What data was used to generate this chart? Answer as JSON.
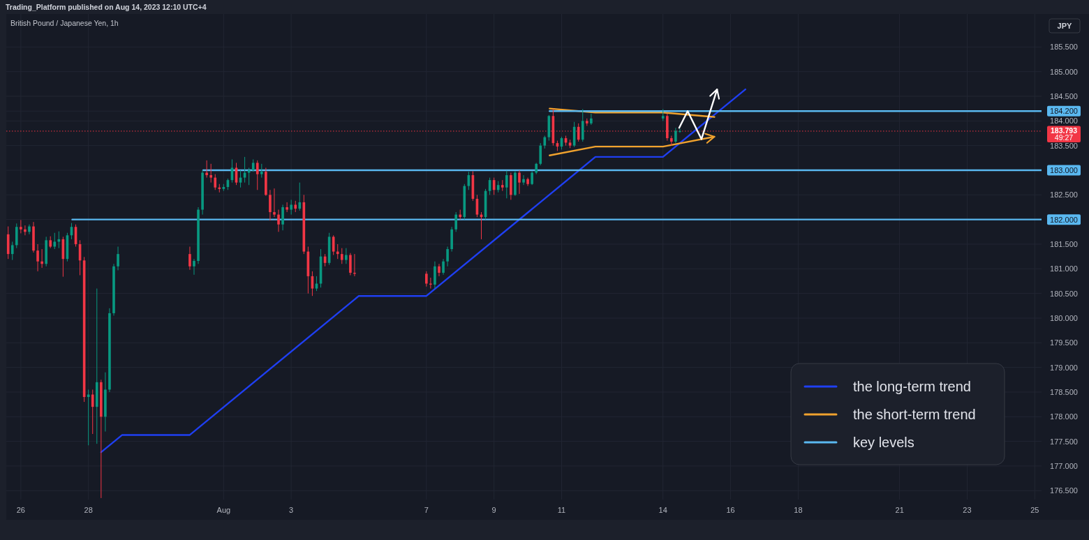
{
  "chart_data": {
    "type": "candlestick",
    "title": "British Pound / Japanese Yen, 1h",
    "ylabel": "JPY",
    "annotations": [
      "Trading_Platform published on Aug 14, 2023 12:10 UTC+4",
      "49:27"
    ],
    "x": [
      "2023-07-25T15:00",
      "2023-07-25T18:00",
      "2023-07-25T21:00",
      "2023-07-26T00:00",
      "2023-07-26T03:00",
      "2023-07-26T06:00",
      "2023-07-26T09:00",
      "2023-07-26T12:00",
      "2023-07-26T15:00",
      "2023-07-26T18:00",
      "2023-07-26T21:00",
      "2023-07-27T00:00",
      "2023-07-27T03:00",
      "2023-07-27T06:00",
      "2023-07-27T09:00",
      "2023-07-27T12:00",
      "2023-07-27T15:00",
      "2023-07-27T18:00",
      "2023-07-27T21:00",
      "2023-07-28T00:00",
      "2023-07-28T03:00",
      "2023-07-28T06:00",
      "2023-07-28T09:00",
      "2023-07-28T12:00",
      "2023-07-28T15:00",
      "2023-07-28T18:00",
      "2023-07-28T21:00",
      "2023-07-31T00:00",
      "2023-07-31T03:00",
      "2023-07-31T06:00",
      "2023-07-31T09:00",
      "2023-07-31T12:00",
      "2023-07-31T15:00",
      "2023-07-31T18:00",
      "2023-07-31T21:00",
      "2023-08-01T00:00",
      "2023-08-01T03:00",
      "2023-08-01T06:00",
      "2023-08-01T09:00",
      "2023-08-01T12:00",
      "2023-08-01T15:00",
      "2023-08-01T18:00",
      "2023-08-01T21:00",
      "2023-08-02T00:00",
      "2023-08-02T03:00",
      "2023-08-02T06:00",
      "2023-08-02T09:00",
      "2023-08-02T12:00",
      "2023-08-02T15:00",
      "2023-08-02T18:00",
      "2023-08-02T21:00",
      "2023-08-03T00:00",
      "2023-08-03T03:00",
      "2023-08-03T06:00",
      "2023-08-03T09:00",
      "2023-08-03T12:00",
      "2023-08-03T15:00",
      "2023-08-03T18:00",
      "2023-08-03T21:00",
      "2023-08-04T00:00",
      "2023-08-04T03:00",
      "2023-08-04T06:00",
      "2023-08-04T09:00",
      "2023-08-04T12:00",
      "2023-08-04T15:00",
      "2023-08-04T18:00",
      "2023-08-04T21:00",
      "2023-08-07T00:00",
      "2023-08-07T03:00",
      "2023-08-07T06:00",
      "2023-08-07T09:00",
      "2023-08-07T12:00",
      "2023-08-07T15:00",
      "2023-08-07T18:00",
      "2023-08-07T21:00",
      "2023-08-08T00:00",
      "2023-08-08T03:00",
      "2023-08-08T06:00",
      "2023-08-08T09:00",
      "2023-08-08T12:00",
      "2023-08-08T15:00",
      "2023-08-08T18:00",
      "2023-08-08T21:00",
      "2023-08-09T00:00",
      "2023-08-09T03:00",
      "2023-08-09T06:00",
      "2023-08-09T09:00",
      "2023-08-09T12:00",
      "2023-08-09T15:00",
      "2023-08-09T18:00",
      "2023-08-09T21:00",
      "2023-08-10T00:00",
      "2023-08-10T03:00",
      "2023-08-10T06:00",
      "2023-08-10T09:00",
      "2023-08-10T12:00",
      "2023-08-10T15:00",
      "2023-08-10T18:00",
      "2023-08-10T21:00",
      "2023-08-11T00:00",
      "2023-08-11T03:00",
      "2023-08-11T06:00",
      "2023-08-11T09:00",
      "2023-08-11T12:00",
      "2023-08-11T15:00",
      "2023-08-11T18:00",
      "2023-08-11T21:00",
      "2023-08-14T00:00",
      "2023-08-14T03:00",
      "2023-08-14T06:00",
      "2023-08-14T09:00",
      "2023-08-14T12:00"
    ],
    "ohlc": [
      [
        181.7,
        181.86,
        181.2,
        181.3
      ],
      [
        181.3,
        181.55,
        181.18,
        181.48
      ],
      [
        181.48,
        181.92,
        181.42,
        181.85
      ],
      [
        181.85,
        181.99,
        181.72,
        181.8
      ],
      [
        181.8,
        181.88,
        181.68,
        181.75
      ],
      [
        181.75,
        181.9,
        181.7,
        181.86
      ],
      [
        181.86,
        181.95,
        181.33,
        181.37
      ],
      [
        181.37,
        181.5,
        180.95,
        181.15
      ],
      [
        181.15,
        181.4,
        181.02,
        181.1
      ],
      [
        181.1,
        181.65,
        181.05,
        181.58
      ],
      [
        181.58,
        181.66,
        181.42,
        181.45
      ],
      [
        181.45,
        181.73,
        181.4,
        181.55
      ],
      [
        181.55,
        181.76,
        181.42,
        181.6
      ],
      [
        181.6,
        181.65,
        180.84,
        181.2
      ],
      [
        181.2,
        181.73,
        181.15,
        181.68
      ],
      [
        181.68,
        181.93,
        181.6,
        181.85
      ],
      [
        181.85,
        181.9,
        181.45,
        181.5
      ],
      [
        181.5,
        181.58,
        180.87,
        181.17
      ],
      [
        181.17,
        181.24,
        178.3,
        178.4
      ],
      [
        178.4,
        178.55,
        177.42,
        178.45
      ],
      [
        178.45,
        178.55,
        177.65,
        178.2
      ],
      [
        178.2,
        180.6,
        177.45,
        178.7
      ],
      [
        178.7,
        178.75,
        176.35,
        178.0
      ],
      [
        178.0,
        178.9,
        177.7,
        178.55
      ],
      [
        178.55,
        180.2,
        178.5,
        180.1
      ],
      [
        180.1,
        181.1,
        180.05,
        181.05
      ],
      [
        181.05,
        181.45,
        180.97,
        181.3
      ],
      [
        181.3,
        181.45,
        180.98,
        181.05
      ],
      [
        181.05,
        181.2,
        180.88,
        181.16
      ],
      [
        181.16,
        182.25,
        181.1,
        182.2
      ],
      [
        182.2,
        183.0,
        182.1,
        182.95
      ],
      [
        182.95,
        183.2,
        182.85,
        182.9
      ],
      [
        182.9,
        183.13,
        182.75,
        182.85
      ],
      [
        182.85,
        182.92,
        182.6,
        182.65
      ],
      [
        182.65,
        182.72,
        182.55,
        182.62
      ],
      [
        182.62,
        182.72,
        182.58,
        182.66
      ],
      [
        182.66,
        182.83,
        182.6,
        182.8
      ],
      [
        182.8,
        183.22,
        182.75,
        183.05
      ],
      [
        183.05,
        183.15,
        182.7,
        182.75
      ],
      [
        182.75,
        183.0,
        182.65,
        182.85
      ],
      [
        182.85,
        183.27,
        182.75,
        182.95
      ],
      [
        182.95,
        183.05,
        182.7,
        183.0
      ],
      [
        183.0,
        183.22,
        182.97,
        183.15
      ],
      [
        183.15,
        183.2,
        182.6,
        182.92
      ],
      [
        182.92,
        183.13,
        182.85,
        182.97
      ],
      [
        182.97,
        183.05,
        182.48,
        182.5
      ],
      [
        182.5,
        182.6,
        181.98,
        182.15
      ],
      [
        182.15,
        182.63,
        182.05,
        182.1
      ],
      [
        182.1,
        182.2,
        181.75,
        181.9
      ],
      [
        181.9,
        182.3,
        181.78,
        182.25
      ],
      [
        182.25,
        182.35,
        182.15,
        182.2
      ],
      [
        182.2,
        182.4,
        182.1,
        182.3
      ],
      [
        182.3,
        182.38,
        182.15,
        182.22
      ],
      [
        182.22,
        182.75,
        182.18,
        182.35
      ],
      [
        182.35,
        182.5,
        181.3,
        181.35
      ],
      [
        181.35,
        181.45,
        180.5,
        180.85
      ],
      [
        180.85,
        180.95,
        180.45,
        180.6
      ],
      [
        180.6,
        180.85,
        180.55,
        180.7
      ],
      [
        180.7,
        181.4,
        180.62,
        181.25
      ],
      [
        181.25,
        181.3,
        181.05,
        181.12
      ],
      [
        181.12,
        181.73,
        181.08,
        181.65
      ],
      [
        181.65,
        181.68,
        181.28,
        181.35
      ],
      [
        181.35,
        181.5,
        181.2,
        181.3
      ],
      [
        181.3,
        181.42,
        181.1,
        181.18
      ],
      [
        181.18,
        181.42,
        181.1,
        181.28
      ],
      [
        181.28,
        181.32,
        180.87,
        180.92
      ],
      [
        180.92,
        181.3,
        180.85,
        180.9
      ],
      [
        180.9,
        180.95,
        180.64,
        180.7
      ],
      [
        180.7,
        180.82,
        180.6,
        180.68
      ],
      [
        180.68,
        181.15,
        180.6,
        181.05
      ],
      [
        181.05,
        181.1,
        180.85,
        180.92
      ],
      [
        180.92,
        181.2,
        180.88,
        181.15
      ],
      [
        181.15,
        181.45,
        181.05,
        181.4
      ],
      [
        181.4,
        181.85,
        181.35,
        181.8
      ],
      [
        181.8,
        182.15,
        181.75,
        182.1
      ],
      [
        182.1,
        182.2,
        182.0,
        182.05
      ],
      [
        182.05,
        182.72,
        182.0,
        182.68
      ],
      [
        182.68,
        182.97,
        182.6,
        182.9
      ],
      [
        182.9,
        182.98,
        182.38,
        182.42
      ],
      [
        182.42,
        182.5,
        182.05,
        182.1
      ],
      [
        182.1,
        182.15,
        181.6,
        182.05
      ],
      [
        182.05,
        182.62,
        182.0,
        182.58
      ],
      [
        182.58,
        182.85,
        182.5,
        182.8
      ],
      [
        182.8,
        182.85,
        182.5,
        182.6
      ],
      [
        182.6,
        182.78,
        182.55,
        182.7
      ],
      [
        182.7,
        182.8,
        182.58,
        182.65
      ],
      [
        182.65,
        182.99,
        182.43,
        182.9
      ],
      [
        182.9,
        182.95,
        182.4,
        182.5
      ],
      [
        182.5,
        182.98,
        182.48,
        182.95
      ],
      [
        182.95,
        183.0,
        182.52,
        182.75
      ],
      [
        182.75,
        182.9,
        182.7,
        182.82
      ],
      [
        182.82,
        182.85,
        182.68,
        182.72
      ],
      [
        182.72,
        182.98,
        182.7,
        182.95
      ],
      [
        182.95,
        183.15,
        182.92,
        183.13
      ],
      [
        183.13,
        183.55,
        183.1,
        183.5
      ],
      [
        183.5,
        183.7,
        183.44,
        183.67
      ],
      [
        183.67,
        184.12,
        183.6,
        184.1
      ],
      [
        184.1,
        184.24,
        183.5,
        183.55
      ],
      [
        183.55,
        183.6,
        183.39,
        183.48
      ],
      [
        183.48,
        183.68,
        183.42,
        183.65
      ],
      [
        183.65,
        183.7,
        183.5,
        183.56
      ],
      [
        183.56,
        183.62,
        183.45,
        183.5
      ],
      [
        183.5,
        183.98,
        183.47,
        183.88
      ],
      [
        183.88,
        183.95,
        183.58,
        183.62
      ],
      [
        183.62,
        184.24,
        183.58,
        184.0
      ],
      [
        184.0,
        184.05,
        183.9,
        183.95
      ],
      [
        183.95,
        184.15,
        183.92,
        184.05
      ],
      [
        184.05,
        184.24,
        184.0,
        184.1
      ],
      [
        184.1,
        184.15,
        183.6,
        183.65
      ],
      [
        183.65,
        183.7,
        183.5,
        183.58
      ],
      [
        183.58,
        183.86,
        183.55,
        183.8
      ],
      [
        183.78,
        183.84,
        183.76,
        183.793
      ]
    ],
    "colors": [
      "#f23645",
      "#089981",
      "#089981",
      "#f23645",
      "#f23645",
      "#089981",
      "#f23645",
      "#f23645",
      "#f23645",
      "#089981",
      "#f23645",
      "#089981",
      "#089981",
      "#f23645",
      "#089981",
      "#089981",
      "#f23645",
      "#f23645",
      "#f23645",
      "#089981",
      "#f23645",
      "#089981",
      "#f23645",
      "#089981",
      "#089981",
      "#089981",
      "#089981",
      "#f23645",
      "#089981",
      "#089981",
      "#089981",
      "#f23645",
      "#f23645",
      "#f23645",
      "#f23645",
      "#089981",
      "#089981",
      "#089981",
      "#f23645",
      "#089981",
      "#089981",
      "#089981",
      "#089981",
      "#f23645",
      "#089981",
      "#f23645",
      "#f23645",
      "#f23645",
      "#f23645",
      "#089981",
      "#f23645",
      "#089981",
      "#f23645",
      "#089981",
      "#f23645",
      "#f23645",
      "#f23645",
      "#089981",
      "#089981",
      "#f23645",
      "#089981",
      "#f23645",
      "#f23645",
      "#f23645",
      "#089981",
      "#f23645",
      "#f23645",
      "#f23645",
      "#f23645",
      "#089981",
      "#f23645",
      "#089981",
      "#089981",
      "#089981",
      "#089981",
      "#f23645",
      "#089981",
      "#089981",
      "#f23645",
      "#f23645",
      "#f23645",
      "#089981",
      "#089981",
      "#f23645",
      "#089981",
      "#f23645",
      "#089981",
      "#f23645",
      "#089981",
      "#f23645",
      "#089981",
      "#f23645",
      "#089981",
      "#089981",
      "#089981",
      "#089981",
      "#089981",
      "#f23645",
      "#f23645",
      "#089981",
      "#f23645",
      "#f23645",
      "#089981",
      "#f23645",
      "#089981",
      "#f23645",
      "#089981",
      "#089981",
      "#f23645",
      "#f23645",
      "#089981",
      "#089981"
    ],
    "series": [
      {
        "name": "the long-term trend",
        "type": "line",
        "color": "#1f3ff2",
        "x": [
          "2023-07-28T09:00",
          "2023-07-29T00:00",
          "2023-07-31T00:00",
          "2023-08-05T00:00",
          "2023-08-07T00:00",
          "2023-08-12T00:00",
          "2023-08-14T00:00",
          "2023-08-16T10:30"
        ],
        "values": [
          177.28,
          177.63,
          177.63,
          180.45,
          180.45,
          183.27,
          183.27,
          184.64
        ]
      },
      {
        "name": "the short-term trend",
        "type": "line",
        "color": "#f0a22e",
        "x": [
          "2023-08-10T15:30",
          "2023-08-12T00:00",
          "2023-08-14T00:00",
          "2023-08-15T12:30"
        ],
        "values": [
          184.25,
          184.17,
          184.17,
          184.08
        ]
      },
      {
        "type": "line",
        "color": "#f0a22e",
        "x": [
          "2023-08-10T15:30",
          "2023-08-12T00:00",
          "2023-08-14T00:00",
          "2023-08-15T12:30"
        ],
        "values": [
          183.3,
          183.48,
          183.48,
          183.68
        ]
      },
      {
        "name": "key levels",
        "type": "line",
        "color": "#5ab8f0",
        "x": [
          "2023-07-27T12:30",
          "2023-08-25T04:48"
        ],
        "values": [
          182,
          182
        ]
      },
      {
        "type": "line",
        "color": "#5ab8f0",
        "x": [
          "2023-07-31T09:30",
          "2023-08-25T04:48"
        ],
        "values": [
          183,
          183
        ]
      },
      {
        "type": "line",
        "color": "#5ab8f0",
        "x": [
          "2023-08-10T15:30",
          "2023-08-25T04:48"
        ],
        "values": [
          184.2,
          184.2
        ]
      },
      {
        "type": "line",
        "color": "#ffffff",
        "x": [
          "2023-08-14T11:30",
          "2023-08-14T17:30",
          "2023-08-15T03:20",
          "2023-08-15T14:24"
        ],
        "values": [
          183.86,
          184.2,
          183.63,
          184.64
        ]
      }
    ],
    "ref_lines": [
      {
        "axis": "y",
        "value": 183.793,
        "label": "183.793",
        "color": "#f23645",
        "line_style": "dotted"
      }
    ],
    "xlim": [
      "2023-07-25T13:40",
      "2023-08-25T04:48"
    ],
    "xticks": [
      {
        "value": "2023-07-26",
        "label": "26"
      },
      {
        "value": "2023-07-28",
        "label": "28"
      },
      {
        "value": "2023-08-01",
        "label": "Aug"
      },
      {
        "value": "2023-08-03",
        "label": "3"
      },
      {
        "value": "2023-08-07",
        "label": "7"
      },
      {
        "value": "2023-08-09",
        "label": "9"
      },
      {
        "value": "2023-08-11",
        "label": "11"
      },
      {
        "value": "2023-08-14",
        "label": "14"
      },
      {
        "value": "2023-08-16",
        "label": "16"
      },
      {
        "value": "2023-08-18",
        "label": "18"
      },
      {
        "value": "2023-08-21",
        "label": "21"
      },
      {
        "value": "2023-08-23",
        "label": "23"
      },
      {
        "value": "2023-08-25",
        "label": "25"
      }
    ],
    "ylim": [
      176.32,
      186.17
    ],
    "yticks": [
      {
        "value": 176.5,
        "label": "176.500"
      },
      {
        "value": 177,
        "label": "177.000"
      },
      {
        "value": 177.5,
        "label": "177.500"
      },
      {
        "value": 178,
        "label": "178.000"
      },
      {
        "value": 178.5,
        "label": "178.500"
      },
      {
        "value": 179,
        "label": "179.000"
      },
      {
        "value": 179.5,
        "label": "179.500"
      },
      {
        "value": 180,
        "label": "180.000"
      },
      {
        "value": 180.5,
        "label": "180.500"
      },
      {
        "value": 181,
        "label": "181.000"
      },
      {
        "value": 181.5,
        "label": "181.500"
      },
      {
        "value": 182,
        "label": "182.000"
      },
      {
        "value": 182.5,
        "label": "182.500"
      },
      {
        "value": 183,
        "label": "183.000"
      },
      {
        "value": 183.5,
        "label": "183.500"
      },
      {
        "value": 184,
        "label": "184.000"
      },
      {
        "value": 184.2,
        "label": "184.200"
      },
      {
        "value": 184.5,
        "label": "184.500"
      },
      {
        "value": 185,
        "label": "185.000"
      },
      {
        "value": 185.5,
        "label": "185.500"
      }
    ],
    "grid": true,
    "legend": "bottom right"
  }
}
